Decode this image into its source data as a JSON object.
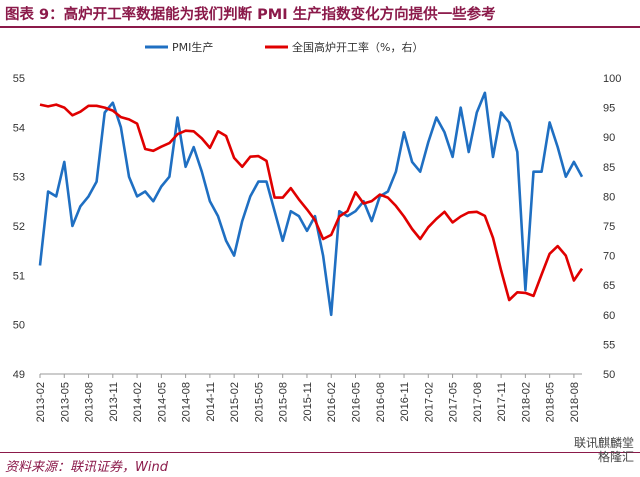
{
  "title": "图表 9：高炉开工率数据能为我们判断 PMI 生产指数变化方向提供一些参考",
  "source": "资料来源：联讯证券，Wind",
  "watermark": {
    "line1": "联讯麒麟堂",
    "line2": "格隆汇"
  },
  "colors": {
    "pmi": "#1f6fc2",
    "blast": "#e00000",
    "accent": "#8b1a4a"
  },
  "chart_data": {
    "type": "line",
    "legend": {
      "placement": "top",
      "entries": [
        "PMI生产",
        "全国高炉开工率（%，右）"
      ]
    },
    "yleft": {
      "min": 49,
      "max": 55,
      "ticks": [
        "49",
        "50",
        "51",
        "52",
        "53",
        "54",
        "55"
      ]
    },
    "yright": {
      "min": 50,
      "max": 100,
      "ticks": [
        "50",
        "55",
        "60",
        "65",
        "70",
        "75",
        "80",
        "85",
        "90",
        "95",
        "100"
      ]
    },
    "xticks": [
      "2013-02",
      "2013-05",
      "2013-08",
      "2013-11",
      "2014-02",
      "2014-05",
      "2014-08",
      "2014-11",
      "2015-02",
      "2015-05",
      "2015-08",
      "2015-11",
      "2016-02",
      "2016-05",
      "2016-08",
      "2016-11",
      "2017-02",
      "2017-05",
      "2017-08",
      "2017-11",
      "2018-02",
      "2018-05",
      "2018-08"
    ],
    "x_start": "2013-02",
    "series": [
      {
        "name": "PMI生产",
        "axis": "left",
        "values": [
          51.2,
          52.7,
          52.6,
          53.3,
          52.0,
          52.4,
          52.6,
          52.9,
          54.3,
          54.5,
          54.0,
          53.0,
          52.6,
          52.7,
          52.5,
          52.8,
          53.0,
          54.2,
          53.2,
          53.6,
          53.1,
          52.5,
          52.2,
          51.7,
          51.4,
          52.1,
          52.6,
          52.9,
          52.9,
          52.3,
          51.7,
          52.3,
          52.2,
          51.9,
          52.2,
          51.4,
          50.2,
          52.3,
          52.2,
          52.3,
          52.5,
          52.1,
          52.6,
          52.7,
          53.1,
          53.9,
          53.3,
          53.1,
          53.7,
          54.2,
          53.9,
          53.4,
          54.4,
          53.5,
          54.3,
          54.7,
          53.4,
          54.3,
          54.1,
          53.5,
          50.7,
          53.1,
          53.1,
          54.1,
          53.6,
          53.0,
          53.3,
          53.0
        ]
      },
      {
        "name": "全国高炉开工率（%，右）",
        "axis": "right",
        "values": [
          95.5,
          95.2,
          95.5,
          95.0,
          93.7,
          94.3,
          95.3,
          95.3,
          95.0,
          94.5,
          93.4,
          93.0,
          92.3,
          88.0,
          87.7,
          88.4,
          89.0,
          90.5,
          91.1,
          91.0,
          89.8,
          88.2,
          91.0,
          90.2,
          86.5,
          85.0,
          86.7,
          86.8,
          86.0,
          79.8,
          79.8,
          81.4,
          79.5,
          77.8,
          76.0,
          72.8,
          73.5,
          76.6,
          77.5,
          80.7,
          78.8,
          79.2,
          80.3,
          79.8,
          78.4,
          76.6,
          74.5,
          72.8,
          74.8,
          76.2,
          77.4,
          75.6,
          76.6,
          77.3,
          77.4,
          76.7,
          73.0,
          67.5,
          62.5,
          63.8,
          63.7,
          63.2,
          66.8,
          70.3,
          71.6,
          70.0,
          65.8,
          67.8
        ]
      }
    ]
  }
}
